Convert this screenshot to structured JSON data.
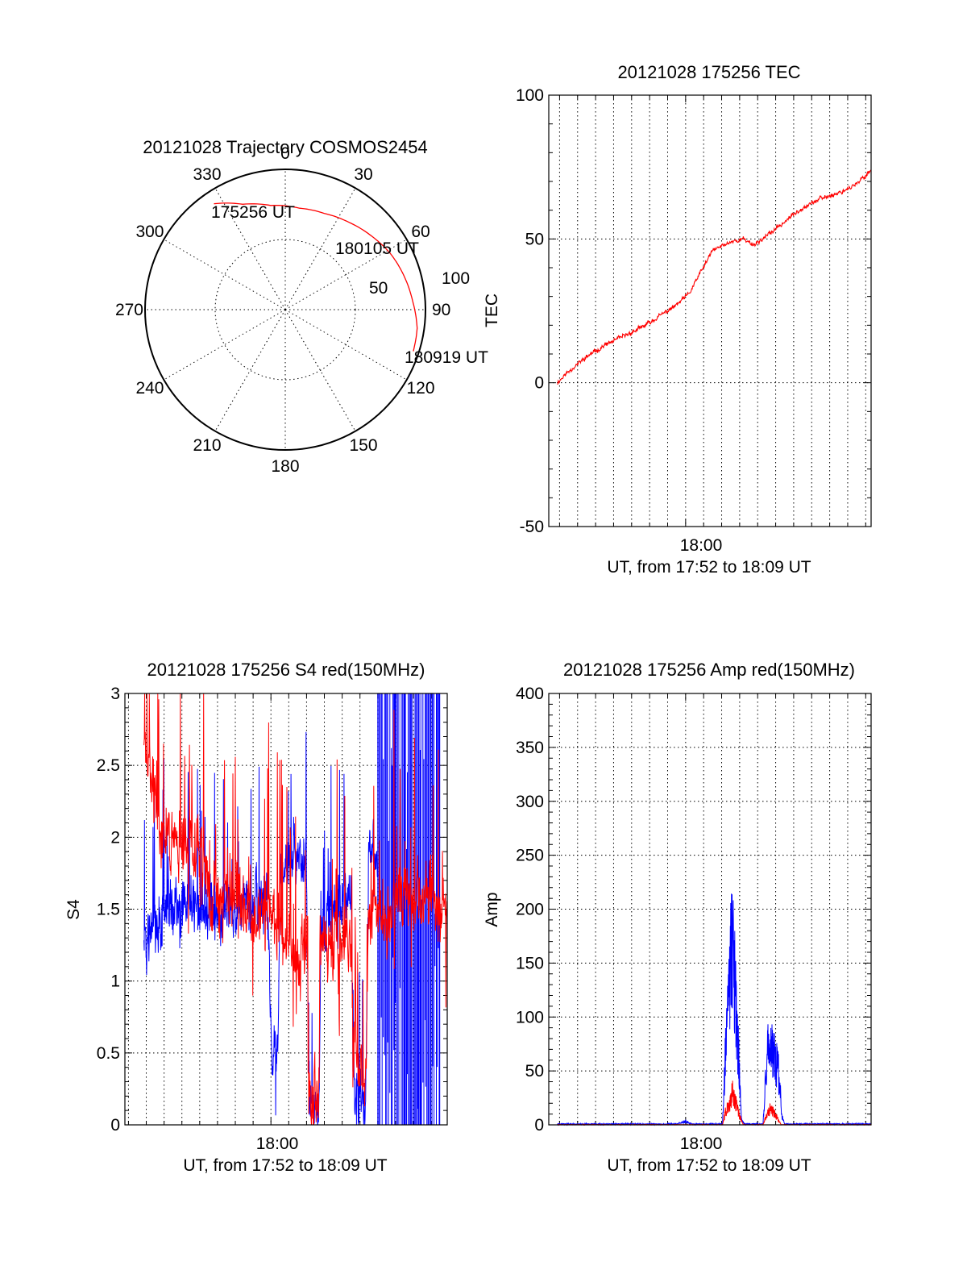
{
  "colors": {
    "red": "#ff0000",
    "blue": "#0000ff",
    "black": "#000000",
    "background": "#ffffff"
  },
  "chart_data": [
    {
      "id": "trajectory",
      "type": "polar",
      "title": "20121028 Trajectory COSMOS2454",
      "azimuth_labels": [
        "0",
        "30",
        "60",
        "90",
        "120",
        "150",
        "180",
        "210",
        "240",
        "270",
        "300",
        "330"
      ],
      "radial_labels": [
        "50",
        "100"
      ],
      "radial_max": 100,
      "track": {
        "color": "red",
        "points": [
          {
            "az": 326,
            "r": 91
          },
          {
            "az": 338,
            "r": 81
          },
          {
            "az": 352,
            "r": 75
          },
          {
            "az": 8,
            "r": 73
          },
          {
            "az": 22,
            "r": 74
          },
          {
            "az": 36,
            "r": 77
          },
          {
            "az": 50,
            "r": 81
          },
          {
            "az": 62,
            "r": 85
          },
          {
            "az": 74,
            "r": 88
          },
          {
            "az": 86,
            "r": 91
          },
          {
            "az": 98,
            "r": 95
          },
          {
            "az": 108,
            "r": 96
          }
        ]
      },
      "annotations": [
        "175256 UT",
        "180105 UT",
        "180919 UT"
      ]
    },
    {
      "id": "tec",
      "type": "line",
      "title": "20121028 175256 TEC",
      "ylabel": "TEC",
      "xlabel": "UT, from 17:52 to 18:09 UT",
      "xlim": [
        -7.6,
        10.3
      ],
      "ylim": [
        -50,
        100
      ],
      "yticks": [
        -50,
        0,
        50,
        100
      ],
      "xtick_label": "18:00",
      "series": [
        {
          "name": "TEC",
          "color": "red",
          "x": [
            -7.13,
            -6.5,
            -5.5,
            -4.5,
            -3.5,
            -2.5,
            -1.5,
            -0.5,
            0.2,
            0.8,
            1.5,
            2.5,
            3.2,
            3.8,
            4.5,
            5.5,
            6.5,
            7.5,
            8.5,
            9.5,
            10.3
          ],
          "y": [
            0,
            4,
            9,
            13,
            16,
            19,
            23,
            27,
            31,
            38,
            46,
            49,
            50,
            48,
            51,
            56,
            61,
            64,
            66,
            69,
            74
          ]
        }
      ]
    },
    {
      "id": "s4",
      "type": "line",
      "title": "20121028 175256 S4 red(150MHz)",
      "ylabel": "S4",
      "xlabel": "UT, from 17:52 to 18:09 UT",
      "xlim": [
        -8.2,
        9.9
      ],
      "ylim": [
        0,
        3
      ],
      "yticks": [
        0,
        0.5,
        1,
        1.5,
        2,
        2.5,
        3
      ],
      "xtick_label": "18:00",
      "series": [
        {
          "name": "red",
          "color": "red",
          "points": [
            [
              -7.13,
              2.7
            ],
            [
              -6,
              1.9
            ],
            [
              -5,
              2.05
            ],
            [
              -4,
              1.9
            ],
            [
              -3,
              1.6
            ],
            [
              -2,
              1.6
            ],
            [
              -1,
              1.45
            ],
            [
              -0.1,
              1.5
            ],
            [
              0.5,
              1.35
            ],
            [
              1.5,
              1.15
            ],
            [
              2.05,
              1.15
            ],
            [
              2.1,
              0.3
            ],
            [
              2.7,
              0.2
            ],
            [
              2.75,
              1.2
            ],
            [
              3.5,
              1.25
            ],
            [
              4.5,
              1.3
            ],
            [
              4.65,
              0.5
            ],
            [
              5.4,
              0.3
            ],
            [
              5.45,
              1.45
            ],
            [
              7,
              1.55
            ],
            [
              8.5,
              1.6
            ],
            [
              9.9,
              1.55
            ]
          ]
        },
        {
          "name": "blue",
          "color": "blue",
          "points": [
            [
              -7.13,
              1.25
            ],
            [
              -6,
              1.45
            ],
            [
              -5,
              1.55
            ],
            [
              -4,
              1.5
            ],
            [
              -3,
              1.5
            ],
            [
              -2,
              1.55
            ],
            [
              -1,
              1.55
            ],
            [
              -0.2,
              1.6
            ],
            [
              0.05,
              0.5
            ],
            [
              0.4,
              0.5
            ],
            [
              0.5,
              1.7
            ],
            [
              1.2,
              1.9
            ],
            [
              2.0,
              1.8
            ],
            [
              2.15,
              0.15
            ],
            [
              2.7,
              0.12
            ],
            [
              2.8,
              1.3
            ],
            [
              3.5,
              1.55
            ],
            [
              4.5,
              1.6
            ],
            [
              4.7,
              0.2
            ],
            [
              5.3,
              0.15
            ],
            [
              5.5,
              2.0
            ],
            [
              6,
              1.7
            ]
          ],
          "saturated_range": [
            6,
            9.5
          ]
        }
      ]
    },
    {
      "id": "amp",
      "type": "line",
      "title": "20121028 175256 Amp red(150MHz)",
      "ylabel": "Amp",
      "xlabel": "UT, from 17:52 to 18:09 UT",
      "xlim": [
        -7.6,
        10.3
      ],
      "ylim": [
        0,
        400
      ],
      "yticks": [
        0,
        50,
        100,
        150,
        200,
        250,
        300,
        350,
        400
      ],
      "xtick_label": "18:00",
      "series": [
        {
          "name": "red",
          "color": "red",
          "points": [
            [
              -7.13,
              0
            ],
            [
              2.05,
              0
            ],
            [
              2.2,
              15
            ],
            [
              2.5,
              30
            ],
            [
              2.6,
              40
            ],
            [
              2.8,
              25
            ],
            [
              3.0,
              10
            ],
            [
              3.2,
              0
            ],
            [
              4.3,
              0
            ],
            [
              4.5,
              12
            ],
            [
              4.7,
              20
            ],
            [
              4.9,
              15
            ],
            [
              5.1,
              8
            ],
            [
              5.3,
              0
            ],
            [
              10.3,
              0
            ]
          ]
        },
        {
          "name": "blue",
          "color": "blue",
          "points": [
            [
              -7.13,
              1
            ],
            [
              -0.5,
              1
            ],
            [
              0,
              4
            ],
            [
              0.4,
              1
            ],
            [
              2.05,
              1
            ],
            [
              2.2,
              80
            ],
            [
              2.4,
              150
            ],
            [
              2.55,
              215
            ],
            [
              2.7,
              190
            ],
            [
              2.85,
              120
            ],
            [
              3.0,
              60
            ],
            [
              3.1,
              5
            ],
            [
              3.3,
              1
            ],
            [
              4.3,
              1
            ],
            [
              4.45,
              60
            ],
            [
              4.6,
              100
            ],
            [
              4.8,
              90
            ],
            [
              5.0,
              80
            ],
            [
              5.2,
              60
            ],
            [
              5.35,
              10
            ],
            [
              5.5,
              1
            ],
            [
              10.3,
              1
            ]
          ]
        }
      ]
    }
  ]
}
